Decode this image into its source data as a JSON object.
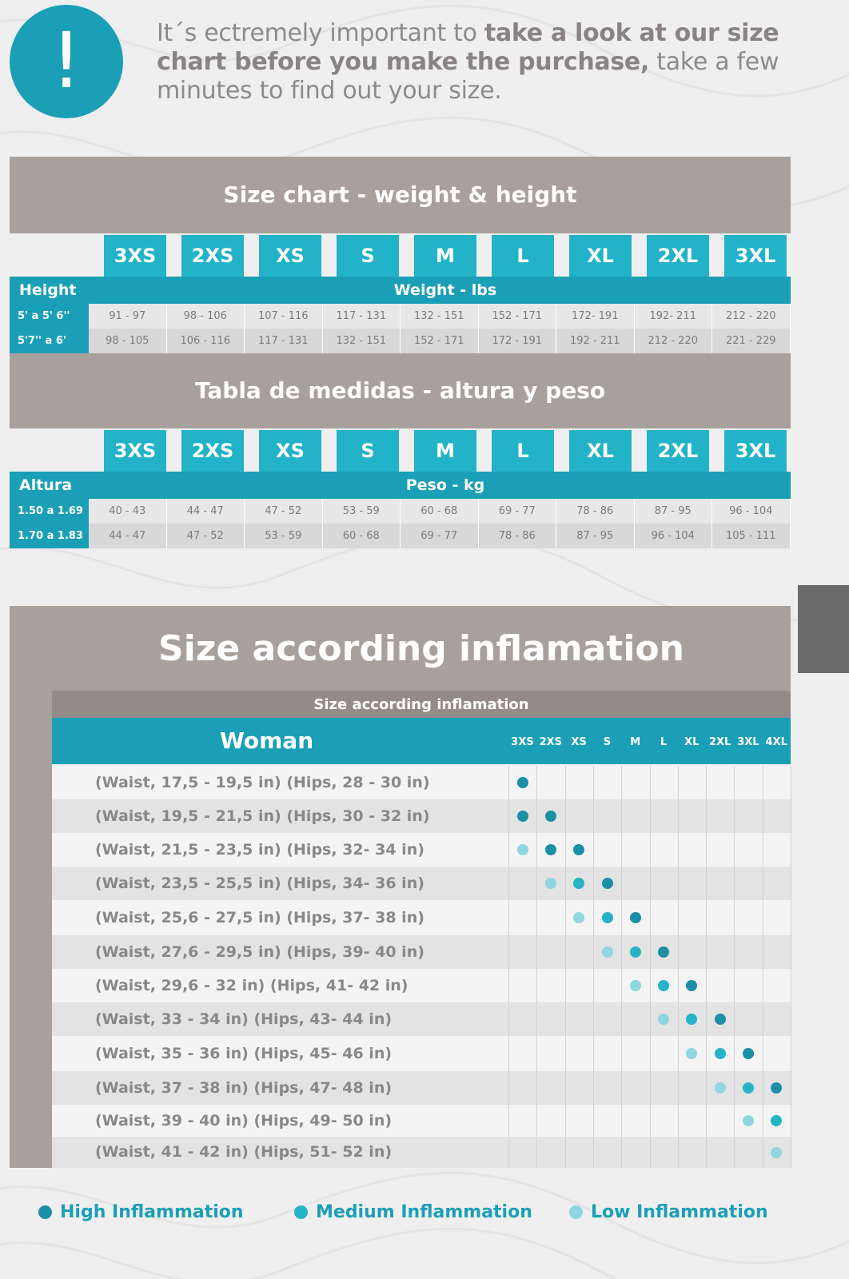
{
  "notice": {
    "icon": "!",
    "text_1": "It´s ectremely important to ",
    "text_bold": "take a look at our size chart before you make the purchase,",
    "text_2": " take a few minutes to find out your size."
  },
  "colors": {
    "teal": "#1b9fb6",
    "cyan": "#22b3c8",
    "taupe": "#a8a09c",
    "high": "#1a8fa6",
    "medium": "#25b3c6",
    "low": "#8fd6de"
  },
  "sizes": [
    "3XS",
    "2XS",
    "XS",
    "S",
    "M",
    "L",
    "XL",
    "2XL",
    "3XL"
  ],
  "imperial": {
    "title": "Size chart - weight & height",
    "row_label": "Height",
    "col_label": "Weight - lbs",
    "rows": [
      {
        "label": "5' a 5' 6''",
        "values": [
          "91 - 97",
          "98 - 106",
          "107 - 116",
          "117 - 131",
          "132 - 151",
          "152 - 171",
          "172- 191",
          "192- 211",
          "212 -  220"
        ]
      },
      {
        "label": "5'7'' a 6'",
        "values": [
          "98 - 105",
          "106 - 116",
          "117 - 131",
          "132 - 151",
          "152 - 171",
          "172 - 191",
          "192 - 211",
          "212 - 220",
          "221 - 229"
        ]
      }
    ]
  },
  "metric": {
    "title": "Tabla de medidas - altura y peso",
    "row_label": "Altura",
    "col_label": "Peso - kg",
    "rows": [
      {
        "label": "1.50 a 1.69",
        "values": [
          "40 - 43",
          "44 - 47",
          "47 - 52",
          "53 - 59",
          "60 - 68",
          "69 - 77",
          "78 - 86",
          "87 - 95",
          "96 - 104"
        ]
      },
      {
        "label": "1.70 a 1.83",
        "values": [
          "44 - 47",
          "47 - 52",
          "53 - 59",
          "60 - 68",
          "69 - 77",
          "78 - 86",
          "87 - 95",
          "96 - 104",
          "105 - 111"
        ]
      }
    ]
  },
  "inflammation": {
    "title": "Size according inflamation",
    "subtitle": "Size according inflamation",
    "group": "Woman",
    "sizes": [
      "3XS",
      "2XS",
      "XS",
      "S",
      "M",
      "L",
      "XL",
      "2XL",
      "3XL",
      "4XL"
    ],
    "rows": [
      {
        "label": "(Waist, 17,5 - 19,5 in) (Hips, 28 - 30 in)",
        "dots": [
          {
            "size": "3XS",
            "level": "high"
          }
        ]
      },
      {
        "label": "(Waist, 19,5 - 21,5 in) (Hips, 30 - 32 in)",
        "dots": [
          {
            "size": "3XS",
            "level": "high"
          },
          {
            "size": "2XS",
            "level": "high"
          }
        ]
      },
      {
        "label": "(Waist, 21,5 - 23,5 in) (Hips, 32- 34 in)",
        "dots": [
          {
            "size": "3XS",
            "level": "low"
          },
          {
            "size": "2XS",
            "level": "high"
          },
          {
            "size": "XS",
            "level": "high"
          }
        ]
      },
      {
        "label": "(Waist, 23,5 - 25,5 in) (Hips, 34- 36 in)",
        "dots": [
          {
            "size": "2XS",
            "level": "low"
          },
          {
            "size": "XS",
            "level": "medium"
          },
          {
            "size": "S",
            "level": "high"
          }
        ]
      },
      {
        "label": "(Waist, 25,6 - 27,5 in) (Hips, 37- 38 in)",
        "dots": [
          {
            "size": "XS",
            "level": "low"
          },
          {
            "size": "S",
            "level": "medium"
          },
          {
            "size": "M",
            "level": "high"
          }
        ]
      },
      {
        "label": "(Waist, 27,6 - 29,5 in) (Hips, 39- 40 in)",
        "dots": [
          {
            "size": "S",
            "level": "low"
          },
          {
            "size": "M",
            "level": "medium"
          },
          {
            "size": "L",
            "level": "high"
          }
        ]
      },
      {
        "label": "(Waist, 29,6 - 32 in) (Hips, 41- 42 in)",
        "dots": [
          {
            "size": "M",
            "level": "low"
          },
          {
            "size": "L",
            "level": "medium"
          },
          {
            "size": "XL",
            "level": "high"
          }
        ]
      },
      {
        "label": "(Waist, 33 - 34 in) (Hips, 43- 44 in)",
        "dots": [
          {
            "size": "L",
            "level": "low"
          },
          {
            "size": "XL",
            "level": "medium"
          },
          {
            "size": "2XL",
            "level": "high"
          }
        ]
      },
      {
        "label": "(Waist, 35 - 36 in) (Hips, 45- 46 in)",
        "dots": [
          {
            "size": "XL",
            "level": "low"
          },
          {
            "size": "2XL",
            "level": "medium"
          },
          {
            "size": "3XL",
            "level": "high"
          }
        ]
      },
      {
        "label": "(Waist, 37 - 38 in) (Hips, 47- 48 in)",
        "dots": [
          {
            "size": "2XL",
            "level": "low"
          },
          {
            "size": "3XL",
            "level": "medium"
          },
          {
            "size": "4XL",
            "level": "high"
          }
        ]
      },
      {
        "label": "(Waist, 39 - 40 in) (Hips, 49- 50 in)",
        "dots": [
          {
            "size": "3XL",
            "level": "low"
          },
          {
            "size": "4XL",
            "level": "medium"
          }
        ]
      },
      {
        "label": "(Waist, 41 - 42 in) (Hips, 51- 52 in)",
        "dots": [
          {
            "size": "4XL",
            "level": "low"
          }
        ]
      }
    ]
  },
  "legend": {
    "high": "High Inflammation",
    "medium": "Medium Inflammation",
    "low": "Low Inflammation"
  }
}
